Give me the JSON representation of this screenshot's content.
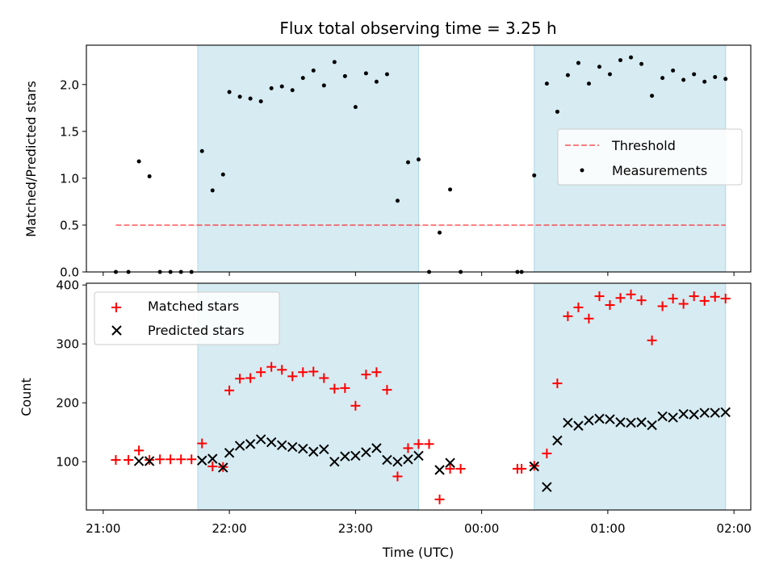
{
  "colors": {
    "span": "#add8e6",
    "threshold": "#ff0000",
    "matched": "#ff0000",
    "predicted": "#000000",
    "measure": "#000000"
  },
  "chart_data": [
    {
      "type": "scatter",
      "title": "Flux total observing time = 3.25 h",
      "ylabel": "Matched/Predicted stars",
      "xlim": [
        "20:52",
        "02:08"
      ],
      "ylim": [
        0,
        2.42
      ],
      "yticks": [
        0.0,
        0.5,
        1.0,
        1.5,
        2.0
      ],
      "ytick_labels": [
        "0.0",
        "0.5",
        "1.0",
        "1.5",
        "2.0"
      ],
      "legend_position": "right",
      "shaded_spans": [
        [
          "21:45",
          "23:30"
        ],
        [
          "00:25",
          "01:56"
        ]
      ],
      "threshold": {
        "label": "Threshold",
        "value": 0.5,
        "x_start": "21:06",
        "x_end": "01:56",
        "style": "dashed"
      },
      "series": [
        {
          "name": "Measurements",
          "marker": "dot",
          "points": [
            [
              "21:06",
              0.0
            ],
            [
              "21:12",
              0.0
            ],
            [
              "21:17",
              1.18
            ],
            [
              "21:22",
              1.02
            ],
            [
              "21:27",
              0.0
            ],
            [
              "21:32",
              0.0
            ],
            [
              "21:37",
              0.0
            ],
            [
              "21:42",
              0.0
            ],
            [
              "21:47",
              1.29
            ],
            [
              "21:52",
              0.87
            ],
            [
              "21:57",
              1.04
            ],
            [
              "22:00",
              1.92
            ],
            [
              "22:05",
              1.87
            ],
            [
              "22:10",
              1.85
            ],
            [
              "22:15",
              1.82
            ],
            [
              "22:20",
              1.96
            ],
            [
              "22:25",
              1.98
            ],
            [
              "22:30",
              1.94
            ],
            [
              "22:35",
              2.07
            ],
            [
              "22:40",
              2.15
            ],
            [
              "22:45",
              1.99
            ],
            [
              "22:50",
              2.24
            ],
            [
              "22:55",
              2.09
            ],
            [
              "23:00",
              1.76
            ],
            [
              "23:05",
              2.12
            ],
            [
              "23:10",
              2.03
            ],
            [
              "23:15",
              2.11
            ],
            [
              "23:20",
              0.76
            ],
            [
              "23:25",
              1.17
            ],
            [
              "23:30",
              1.2
            ],
            [
              "23:35",
              0.0
            ],
            [
              "23:40",
              0.42
            ],
            [
              "23:45",
              0.88
            ],
            [
              "23:50",
              0.0
            ],
            [
              "00:17",
              0.0
            ],
            [
              "00:19",
              0.0
            ],
            [
              "00:25",
              1.03
            ],
            [
              "00:31",
              2.01
            ],
            [
              "00:36",
              1.71
            ],
            [
              "00:41",
              2.1
            ],
            [
              "00:46",
              2.23
            ],
            [
              "00:51",
              2.01
            ],
            [
              "00:56",
              2.19
            ],
            [
              "01:01",
              2.11
            ],
            [
              "01:06",
              2.26
            ],
            [
              "01:11",
              2.29
            ],
            [
              "01:16",
              2.22
            ],
            [
              "01:21",
              1.88
            ],
            [
              "01:26",
              2.07
            ],
            [
              "01:31",
              2.15
            ],
            [
              "01:36",
              2.05
            ],
            [
              "01:41",
              2.11
            ],
            [
              "01:46",
              2.03
            ],
            [
              "01:51",
              2.08
            ],
            [
              "01:56",
              2.06
            ]
          ]
        }
      ]
    },
    {
      "type": "scatter",
      "xlabel": "Time (UTC)",
      "ylabel": "Count",
      "xlim": [
        "20:52",
        "02:08"
      ],
      "ylim": [
        18,
        403
      ],
      "xticks": [
        "21:00",
        "22:00",
        "23:00",
        "00:00",
        "01:00",
        "02:00"
      ],
      "yticks": [
        100,
        200,
        300,
        400
      ],
      "ytick_labels": [
        "100",
        "200",
        "300",
        "400"
      ],
      "legend_position": "top-left",
      "shaded_spans": [
        [
          "21:45",
          "23:30"
        ],
        [
          "00:25",
          "01:56"
        ]
      ],
      "series": [
        {
          "name": "Matched stars",
          "marker": "plus",
          "points": [
            [
              "21:06",
              103
            ],
            [
              "21:12",
              103
            ],
            [
              "21:17",
              119
            ],
            [
              "21:22",
              103
            ],
            [
              "21:27",
              104
            ],
            [
              "21:32",
              104
            ],
            [
              "21:37",
              104
            ],
            [
              "21:42",
              104
            ],
            [
              "21:47",
              131
            ],
            [
              "21:52",
              92
            ],
            [
              "21:57",
              91
            ],
            [
              "22:00",
              221
            ],
            [
              "22:05",
              241
            ],
            [
              "22:10",
              242
            ],
            [
              "22:15",
              252
            ],
            [
              "22:20",
              261
            ],
            [
              "22:25",
              256
            ],
            [
              "22:30",
              245
            ],
            [
              "22:35",
              252
            ],
            [
              "22:40",
              253
            ],
            [
              "22:45",
              242
            ],
            [
              "22:50",
              224
            ],
            [
              "22:55",
              225
            ],
            [
              "23:00",
              195
            ],
            [
              "23:05",
              248
            ],
            [
              "23:10",
              252
            ],
            [
              "23:15",
              222
            ],
            [
              "23:20",
              75
            ],
            [
              "23:25",
              123
            ],
            [
              "23:30",
              130
            ],
            [
              "23:35",
              130
            ],
            [
              "23:40",
              36
            ],
            [
              "23:45",
              88
            ],
            [
              "23:50",
              88
            ],
            [
              "00:17",
              88
            ],
            [
              "00:19",
              88
            ],
            [
              "00:25",
              93
            ],
            [
              "00:31",
              114
            ],
            [
              "00:36",
              233
            ],
            [
              "00:41",
              347
            ],
            [
              "00:46",
              362
            ],
            [
              "00:51",
              343
            ],
            [
              "00:56",
              381
            ],
            [
              "01:01",
              366
            ],
            [
              "01:06",
              378
            ],
            [
              "01:11",
              384
            ],
            [
              "01:16",
              374
            ],
            [
              "01:21",
              306
            ],
            [
              "01:26",
              364
            ],
            [
              "01:31",
              377
            ],
            [
              "01:36",
              368
            ],
            [
              "01:41",
              381
            ],
            [
              "01:46",
              373
            ],
            [
              "01:51",
              380
            ],
            [
              "01:56",
              377
            ]
          ]
        },
        {
          "name": "Predicted stars",
          "marker": "x",
          "points": [
            [
              "21:17",
              101
            ],
            [
              "21:22",
              101
            ],
            [
              "21:47",
              102
            ],
            [
              "21:52",
              105
            ],
            [
              "21:57",
              90
            ],
            [
              "22:00",
              115
            ],
            [
              "22:05",
              127
            ],
            [
              "22:10",
              130
            ],
            [
              "22:15",
              138
            ],
            [
              "22:20",
              133
            ],
            [
              "22:25",
              128
            ],
            [
              "22:30",
              125
            ],
            [
              "22:35",
              122
            ],
            [
              "22:40",
              117
            ],
            [
              "22:45",
              121
            ],
            [
              "22:50",
              100
            ],
            [
              "22:55",
              109
            ],
            [
              "23:00",
              110
            ],
            [
              "23:05",
              116
            ],
            [
              "23:10",
              123
            ],
            [
              "23:15",
              103
            ],
            [
              "23:20",
              100
            ],
            [
              "23:25",
              104
            ],
            [
              "23:30",
              110
            ],
            [
              "23:40",
              86
            ],
            [
              "23:45",
              98
            ],
            [
              "00:25",
              92
            ],
            [
              "00:31",
              57
            ],
            [
              "00:36",
              136
            ],
            [
              "00:41",
              166
            ],
            [
              "00:46",
              161
            ],
            [
              "00:51",
              170
            ],
            [
              "00:56",
              173
            ],
            [
              "01:01",
              172
            ],
            [
              "01:06",
              167
            ],
            [
              "01:11",
              166
            ],
            [
              "01:16",
              167
            ],
            [
              "01:21",
              162
            ],
            [
              "01:26",
              177
            ],
            [
              "01:31",
              175
            ],
            [
              "01:36",
              181
            ],
            [
              "01:41",
              180
            ],
            [
              "01:46",
              183
            ],
            [
              "01:51",
              183
            ],
            [
              "01:56",
              184
            ]
          ]
        }
      ]
    }
  ]
}
